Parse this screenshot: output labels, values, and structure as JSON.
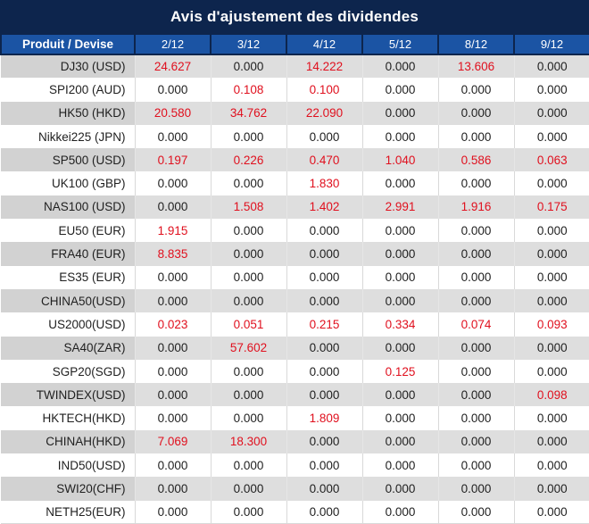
{
  "title": "Avis d'ajustement des dividendes",
  "colors": {
    "title_bg": "#0d254d",
    "header_bg": "#1b54a4",
    "negative_red": "#e0101e",
    "row_alt_bg": "#dedede",
    "row_alt_product_bg": "#d2d2d2"
  },
  "table": {
    "product_header": "Produit / Devise",
    "date_headers": [
      "2/12",
      "3/12",
      "4/12",
      "5/12",
      "8/12",
      "9/12"
    ],
    "rows": [
      {
        "product": "DJ30 (USD)",
        "values": [
          "24.627",
          "0.000",
          "14.222",
          "0.000",
          "13.606",
          "0.000"
        ],
        "red": [
          true,
          false,
          true,
          false,
          true,
          false
        ]
      },
      {
        "product": "SPI200 (AUD)",
        "values": [
          "0.000",
          "0.108",
          "0.100",
          "0.000",
          "0.000",
          "0.000"
        ],
        "red": [
          false,
          true,
          true,
          false,
          false,
          false
        ]
      },
      {
        "product": "HK50 (HKD)",
        "values": [
          "20.580",
          "34.762",
          "22.090",
          "0.000",
          "0.000",
          "0.000"
        ],
        "red": [
          true,
          true,
          true,
          false,
          false,
          false
        ]
      },
      {
        "product": "Nikkei225 (JPN)",
        "values": [
          "0.000",
          "0.000",
          "0.000",
          "0.000",
          "0.000",
          "0.000"
        ],
        "red": [
          false,
          false,
          false,
          false,
          false,
          false
        ]
      },
      {
        "product": "SP500 (USD)",
        "values": [
          "0.197",
          "0.226",
          "0.470",
          "1.040",
          "0.586",
          "0.063"
        ],
        "red": [
          true,
          true,
          true,
          true,
          true,
          true
        ]
      },
      {
        "product": "UK100 (GBP)",
        "values": [
          "0.000",
          "0.000",
          "1.830",
          "0.000",
          "0.000",
          "0.000"
        ],
        "red": [
          false,
          false,
          true,
          false,
          false,
          false
        ]
      },
      {
        "product": "NAS100 (USD)",
        "values": [
          "0.000",
          "1.508",
          "1.402",
          "2.991",
          "1.916",
          "0.175"
        ],
        "red": [
          false,
          true,
          true,
          true,
          true,
          true
        ]
      },
      {
        "product": "EU50 (EUR)",
        "values": [
          "1.915",
          "0.000",
          "0.000",
          "0.000",
          "0.000",
          "0.000"
        ],
        "red": [
          true,
          false,
          false,
          false,
          false,
          false
        ]
      },
      {
        "product": "FRA40 (EUR)",
        "values": [
          "8.835",
          "0.000",
          "0.000",
          "0.000",
          "0.000",
          "0.000"
        ],
        "red": [
          true,
          false,
          false,
          false,
          false,
          false
        ]
      },
      {
        "product": "ES35 (EUR)",
        "values": [
          "0.000",
          "0.000",
          "0.000",
          "0.000",
          "0.000",
          "0.000"
        ],
        "red": [
          false,
          false,
          false,
          false,
          false,
          false
        ]
      },
      {
        "product": "CHINA50(USD)",
        "values": [
          "0.000",
          "0.000",
          "0.000",
          "0.000",
          "0.000",
          "0.000"
        ],
        "red": [
          false,
          false,
          false,
          false,
          false,
          false
        ]
      },
      {
        "product": "US2000(USD)",
        "values": [
          "0.023",
          "0.051",
          "0.215",
          "0.334",
          "0.074",
          "0.093"
        ],
        "red": [
          true,
          true,
          true,
          true,
          true,
          true
        ]
      },
      {
        "product": "SA40(ZAR)",
        "values": [
          "0.000",
          "57.602",
          "0.000",
          "0.000",
          "0.000",
          "0.000"
        ],
        "red": [
          false,
          true,
          false,
          false,
          false,
          false
        ]
      },
      {
        "product": "SGP20(SGD)",
        "values": [
          "0.000",
          "0.000",
          "0.000",
          "0.125",
          "0.000",
          "0.000"
        ],
        "red": [
          false,
          false,
          false,
          true,
          false,
          false
        ]
      },
      {
        "product": "TWINDEX(USD)",
        "values": [
          "0.000",
          "0.000",
          "0.000",
          "0.000",
          "0.000",
          "0.098"
        ],
        "red": [
          false,
          false,
          false,
          false,
          false,
          true
        ]
      },
      {
        "product": "HKTECH(HKD)",
        "values": [
          "0.000",
          "0.000",
          "1.809",
          "0.000",
          "0.000",
          "0.000"
        ],
        "red": [
          false,
          false,
          true,
          false,
          false,
          false
        ]
      },
      {
        "product": "CHINAH(HKD)",
        "values": [
          "7.069",
          "18.300",
          "0.000",
          "0.000",
          "0.000",
          "0.000"
        ],
        "red": [
          true,
          true,
          false,
          false,
          false,
          false
        ]
      },
      {
        "product": "IND50(USD)",
        "values": [
          "0.000",
          "0.000",
          "0.000",
          "0.000",
          "0.000",
          "0.000"
        ],
        "red": [
          false,
          false,
          false,
          false,
          false,
          false
        ]
      },
      {
        "product": "SWI20(CHF)",
        "values": [
          "0.000",
          "0.000",
          "0.000",
          "0.000",
          "0.000",
          "0.000"
        ],
        "red": [
          false,
          false,
          false,
          false,
          false,
          false
        ]
      },
      {
        "product": "NETH25(EUR)",
        "values": [
          "0.000",
          "0.000",
          "0.000",
          "0.000",
          "0.000",
          "0.000"
        ],
        "red": [
          false,
          false,
          false,
          false,
          false,
          false
        ]
      }
    ]
  }
}
